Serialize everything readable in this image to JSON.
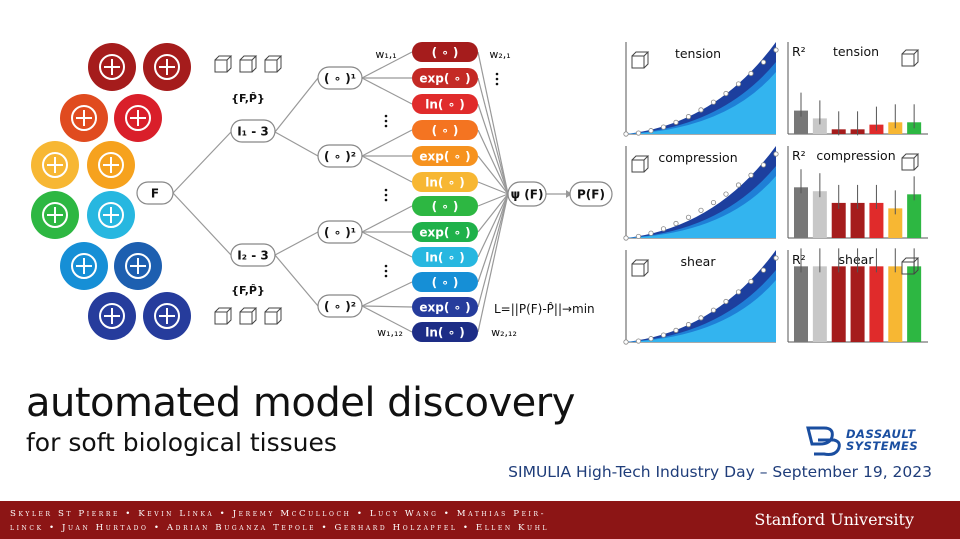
{
  "slide": {
    "title": "automated model discovery",
    "subtitle": "for soft biological tissues",
    "event": "SIMULIA High-Tech Industry Day – September 19, 2023",
    "authors_line1": "Skyler St Pierre • Kevin Linka • Jeremy McCulloch • Lucy Wang • Mathias Peir-",
    "authors_line2": "linck • Juan Hurtado • Adrian Buganza Tepole • Gerhard Holzapfel • Ellen Kuhl",
    "university": "Stanford University",
    "sponsor_logo": {
      "line1": "DASSAULT",
      "line2": "SYSTEMES",
      "color": "#1a4ea0"
    }
  },
  "network": {
    "input_F": "F",
    "data_label": "{F,P̂}",
    "invariant1": "I₁ - 3",
    "invariant2": "I₂ - 3",
    "power1": "( ∘ )¹",
    "power2": "( ∘ )²",
    "act_identity": "( ∘ )",
    "act_exp": "exp( ∘ )",
    "act_ln": "ln( ∘ )",
    "psi": "ψ (F)",
    "stress": "P(F)",
    "w11": "w₁,₁",
    "w112": "w₁,₁₂",
    "w21": "w₂,₁",
    "w212": "w₂,₁₂",
    "loss": "L=||P(F)-P̂||→min",
    "node_colors": [
      "#a51c1c",
      "#c42a25",
      "#e02b2b",
      "#f47421",
      "#f6921e",
      "#f7b733",
      "#2db742",
      "#1fb14a",
      "#27b7e0",
      "#168fd6",
      "#263c9c",
      "#1d2d86"
    ]
  },
  "tissue_icons": [
    {
      "name": "arteries-icon",
      "color": "#a51c1c"
    },
    {
      "name": "heart-icon",
      "color": "#a51c1c"
    },
    {
      "name": "lungs-icon",
      "color": "#e04b1f"
    },
    {
      "name": "muscle-icon",
      "color": "#d91f2a"
    },
    {
      "name": "skin-icon",
      "color": "#f7b733"
    },
    {
      "name": "liver-icon",
      "color": "#f6a21e"
    },
    {
      "name": "brain-icon",
      "color": "#2db742"
    },
    {
      "name": "gel-icon",
      "color": "#27b7e0"
    },
    {
      "name": "bone-icon",
      "color": "#168fd6"
    },
    {
      "name": "cells-icon",
      "color": "#1d5fb0"
    },
    {
      "name": "tissue-mesh-icon",
      "color": "#263c9c"
    },
    {
      "name": "tendon-icon",
      "color": "#263c9c"
    }
  ],
  "panels": {
    "tension": "tension",
    "compression": "compression",
    "shear": "shear",
    "r2": "R²"
  },
  "r2_bar_colors": [
    "#777777",
    "#c8c8c8",
    "#a51c1c",
    "#a51c1c",
    "#e02b2b",
    "#f7b733",
    "#2db742"
  ],
  "chart_data": [
    {
      "type": "bar",
      "title": "tension",
      "ylabel": "R²",
      "values": [
        0.3,
        0.2,
        0.06,
        0.06,
        0.12,
        0.15,
        0.15
      ],
      "ylim": [
        0,
        1
      ]
    },
    {
      "type": "bar",
      "title": "compression",
      "ylabel": "R²",
      "values": [
        0.65,
        0.6,
        0.45,
        0.45,
        0.45,
        0.38,
        0.56
      ],
      "ylim": [
        0,
        1
      ]
    },
    {
      "type": "bar",
      "title": "shear",
      "ylabel": "R²",
      "values": [
        0.97,
        0.97,
        0.97,
        0.97,
        0.97,
        0.97,
        0.97
      ],
      "ylim": [
        0,
        1
      ]
    }
  ]
}
